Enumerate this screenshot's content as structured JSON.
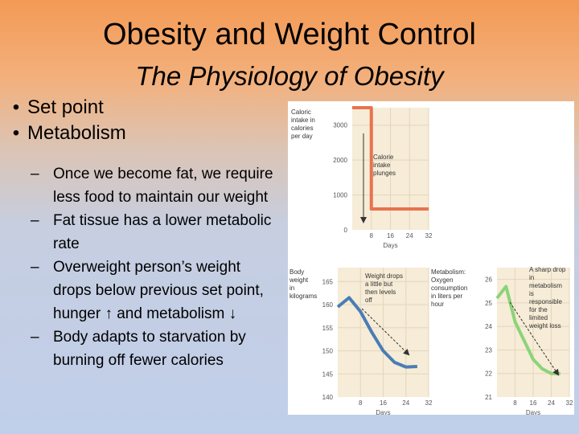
{
  "title": "Obesity and Weight Control",
  "subtitle": "The Physiology of Obesity",
  "bullets": [
    "Set point",
    "Metabolism"
  ],
  "sub_bullets": [
    "Once we become fat, we require less food to maintain our weight",
    "Fat tissue has a lower metabolic rate",
    "Overweight person’s weight drops below previous set point, hunger ↑ and metabolism ↓",
    "Body adapts to starvation by burning off fewer calories"
  ],
  "colors": {
    "calorie_line": "#e8734f",
    "weight_line": "#4a7db5",
    "metabolism_line": "#8cd37a",
    "panel_bg": "#f6ecd7"
  },
  "chart_data": [
    {
      "type": "line",
      "ylabel": "Caloric intake in calories per day",
      "xlabel": "Days",
      "annotation": "Calorie intake plunges",
      "x_ticks": [
        "8",
        "16",
        "24",
        "32"
      ],
      "y_ticks": [
        "3000",
        "2000",
        "1000",
        "0"
      ],
      "ylim": [
        0,
        3500
      ],
      "xlim": [
        0,
        32
      ],
      "series": [
        {
          "x": [
            0,
            8,
            8,
            32
          ],
          "y": [
            3500,
            3500,
            600,
            600
          ]
        }
      ]
    },
    {
      "type": "line",
      "ylabel": "Body weight in kilograms",
      "xlabel": "Days",
      "annotation": "Weight drops a little but then levels off",
      "x_ticks": [
        "8",
        "16",
        "24",
        "32"
      ],
      "y_ticks": [
        "165",
        "160",
        "155",
        "150",
        "145",
        "140"
      ],
      "ylim": [
        140,
        168
      ],
      "xlim": [
        0,
        32
      ],
      "series": [
        {
          "x": [
            0,
            4,
            8,
            12,
            16,
            20,
            24,
            28
          ],
          "y": [
            159.5,
            161.5,
            158.5,
            154,
            150,
            147.5,
            146.5,
            146.6
          ]
        }
      ]
    },
    {
      "type": "line",
      "ylabel": "Metabolism: Oxygen consumption in liters per hour",
      "xlabel": "Days",
      "annotation": "A sharp drop in metabolism is responsible for the limited weight loss",
      "x_ticks": [
        "8",
        "16",
        "24",
        "32"
      ],
      "y_ticks": [
        "26",
        "25",
        "24",
        "23",
        "22",
        "21"
      ],
      "ylim": [
        21,
        26.5
      ],
      "xlim": [
        0,
        32
      ],
      "series": [
        {
          "x": [
            0,
            4,
            8,
            12,
            16,
            20,
            24,
            28
          ],
          "y": [
            25.2,
            25.7,
            24.2,
            23.4,
            22.6,
            22.2,
            22.0,
            22.0
          ]
        }
      ]
    }
  ]
}
